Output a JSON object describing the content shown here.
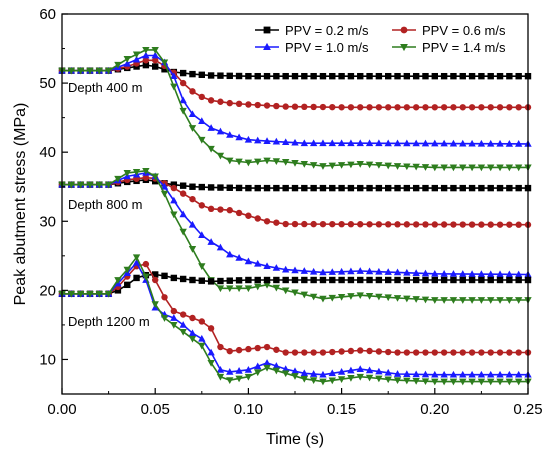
{
  "chart_data": {
    "type": "line",
    "xlabel": "Time (s)",
    "ylabel": "Peak abutment stress (MPa)",
    "xlim": [
      0,
      0.25
    ],
    "ylim": [
      5,
      60
    ],
    "xticks": [
      "0.00",
      "0.05",
      "0.10",
      "0.15",
      "0.20",
      "0.25"
    ],
    "yticks": [
      "10",
      "20",
      "30",
      "40",
      "50",
      "60"
    ],
    "grid": false,
    "legend": {
      "placement": "top-right",
      "columns": 2
    },
    "series_styles": [
      {
        "name": "PPV = 0.2 m/s",
        "color": "#000000",
        "marker": "square"
      },
      {
        "name": "PPV = 0.6 m/s",
        "color": "#b22222",
        "marker": "circle"
      },
      {
        "name": "PPV = 1.0 m/s",
        "color": "#1a1aff",
        "marker": "triangle-up"
      },
      {
        "name": "PPV = 1.4 m/s",
        "color": "#2e7d1e",
        "marker": "triangle-down"
      }
    ],
    "annotations": [
      "Depth 400 m",
      "Depth 800 m",
      "Depth 1200 m"
    ],
    "groups": [
      {
        "depth": "Depth 400 m",
        "series": [
          {
            "name": "PPV = 0.2 m/s",
            "x": [
              0,
              0.025,
              0.035,
              0.045,
              0.05,
              0.055,
              0.06,
              0.07,
              0.08,
              0.1,
              0.25
            ],
            "y": [
              51.8,
              51.8,
              52.2,
              52.6,
              52.4,
              52.0,
              51.6,
              51.3,
              51.1,
              51.0,
              51.0
            ]
          },
          {
            "name": "PPV = 0.6 m/s",
            "x": [
              0,
              0.025,
              0.035,
              0.045,
              0.05,
              0.055,
              0.06,
              0.065,
              0.07,
              0.075,
              0.08,
              0.09,
              0.1,
              0.12,
              0.15,
              0.25
            ],
            "y": [
              51.8,
              51.8,
              52.4,
              53.3,
              53.3,
              52.5,
              51.5,
              50.0,
              48.8,
              48.0,
              47.5,
              47.1,
              46.9,
              46.6,
              46.5,
              46.5
            ]
          },
          {
            "name": "PPV = 1.0 m/s",
            "x": [
              0,
              0.025,
              0.035,
              0.045,
              0.05,
              0.055,
              0.06,
              0.065,
              0.07,
              0.075,
              0.08,
              0.09,
              0.1,
              0.11,
              0.13,
              0.16,
              0.25
            ],
            "y": [
              51.8,
              51.8,
              52.8,
              54.0,
              54.0,
              53.0,
              51.0,
              47.5,
              45.5,
              44.5,
              43.5,
              42.5,
              41.8,
              41.6,
              41.3,
              41.3,
              41.2
            ]
          },
          {
            "name": "PPV = 1.4 m/s",
            "x": [
              0,
              0.025,
              0.035,
              0.045,
              0.05,
              0.055,
              0.06,
              0.065,
              0.07,
              0.075,
              0.08,
              0.085,
              0.09,
              0.1,
              0.11,
              0.12,
              0.14,
              0.16,
              0.18,
              0.2,
              0.25
            ],
            "y": [
              51.8,
              51.8,
              53.5,
              54.8,
              54.8,
              53.0,
              49.5,
              46.0,
              43.5,
              41.8,
              40.5,
              39.5,
              38.8,
              38.5,
              38.8,
              38.6,
              38.0,
              38.3,
              38.0,
              37.8,
              37.8
            ]
          }
        ]
      },
      {
        "depth": "Depth 800 m",
        "series": [
          {
            "name": "PPV = 0.2 m/s",
            "x": [
              0,
              0.025,
              0.035,
              0.045,
              0.05,
              0.055,
              0.06,
              0.07,
              0.08,
              0.1,
              0.25
            ],
            "y": [
              35.3,
              35.3,
              35.7,
              36.0,
              35.8,
              35.5,
              35.3,
              35.0,
              34.9,
              34.8,
              34.8
            ]
          },
          {
            "name": "PPV = 0.6 m/s",
            "x": [
              0,
              0.025,
              0.035,
              0.045,
              0.05,
              0.06,
              0.07,
              0.075,
              0.08,
              0.09,
              0.1,
              0.11,
              0.12,
              0.25
            ],
            "y": [
              35.3,
              35.3,
              36.0,
              36.3,
              36.2,
              34.8,
              33.2,
              32.3,
              31.8,
              31.6,
              30.8,
              30.0,
              29.6,
              29.5
            ]
          },
          {
            "name": "PPV = 1.0 m/s",
            "x": [
              0,
              0.025,
              0.035,
              0.045,
              0.05,
              0.055,
              0.06,
              0.065,
              0.07,
              0.075,
              0.08,
              0.085,
              0.09,
              0.1,
              0.11,
              0.12,
              0.14,
              0.16,
              0.2,
              0.25
            ],
            "y": [
              35.3,
              35.3,
              36.5,
              37.0,
              36.5,
              35.0,
              33.0,
              31.0,
              29.5,
              28.0,
              27.0,
              26.2,
              25.2,
              24.2,
              23.5,
              23.0,
              22.6,
              22.8,
              22.4,
              22.3
            ]
          },
          {
            "name": "PPV = 1.4 m/s",
            "x": [
              0,
              0.025,
              0.035,
              0.045,
              0.05,
              0.055,
              0.06,
              0.065,
              0.07,
              0.075,
              0.08,
              0.085,
              0.09,
              0.1,
              0.11,
              0.12,
              0.14,
              0.16,
              0.18,
              0.2,
              0.25
            ],
            "y": [
              35.3,
              35.3,
              37.0,
              37.3,
              36.5,
              34.0,
              31.0,
              28.5,
              26.0,
              23.5,
              21.5,
              20.3,
              20.3,
              20.3,
              20.8,
              20.0,
              18.8,
              19.3,
              18.9,
              18.6,
              18.6
            ]
          }
        ]
      },
      {
        "depth": "Depth 1200 m",
        "series": [
          {
            "name": "PPV = 0.2 m/s",
            "x": [
              0,
              0.025,
              0.03,
              0.035,
              0.04,
              0.045,
              0.05,
              0.055,
              0.06,
              0.07,
              0.08,
              0.1,
              0.15,
              0.25
            ],
            "y": [
              19.5,
              19.5,
              20.0,
              20.8,
              21.8,
              22.2,
              22.3,
              22.1,
              21.8,
              21.5,
              21.3,
              21.5,
              21.5,
              21.5
            ]
          },
          {
            "name": "PPV = 0.6 m/s",
            "x": [
              0,
              0.025,
              0.03,
              0.035,
              0.04,
              0.045,
              0.05,
              0.055,
              0.06,
              0.065,
              0.07,
              0.075,
              0.08,
              0.085,
              0.09,
              0.1,
              0.11,
              0.12,
              0.14,
              0.16,
              0.18,
              0.2,
              0.25
            ],
            "y": [
              19.5,
              19.5,
              20.5,
              22.0,
              23.5,
              23.8,
              21.5,
              19.0,
              17.0,
              16.5,
              16.0,
              15.5,
              14.5,
              11.8,
              11.2,
              11.5,
              11.8,
              11.0,
              11.0,
              11.3,
              11.0,
              11.0,
              11.0
            ]
          },
          {
            "name": "PPV = 1.0 m/s",
            "x": [
              0,
              0.025,
              0.03,
              0.035,
              0.04,
              0.045,
              0.05,
              0.055,
              0.06,
              0.065,
              0.07,
              0.075,
              0.08,
              0.085,
              0.09,
              0.1,
              0.11,
              0.12,
              0.13,
              0.14,
              0.16,
              0.18,
              0.2,
              0.25
            ],
            "y": [
              19.5,
              19.5,
              21.0,
              22.5,
              24.0,
              21.5,
              17.5,
              16.5,
              16.0,
              15.0,
              13.8,
              13.0,
              11.0,
              8.5,
              8.2,
              8.5,
              9.5,
              8.6,
              8.0,
              7.8,
              8.6,
              7.9,
              7.8,
              7.8
            ]
          },
          {
            "name": "PPV = 1.4 m/s",
            "x": [
              0,
              0.025,
              0.03,
              0.035,
              0.04,
              0.045,
              0.05,
              0.055,
              0.06,
              0.065,
              0.07,
              0.075,
              0.08,
              0.085,
              0.09,
              0.1,
              0.11,
              0.12,
              0.13,
              0.14,
              0.16,
              0.18,
              0.2,
              0.25
            ],
            "y": [
              19.5,
              19.5,
              21.5,
              23.0,
              24.8,
              22.0,
              18.0,
              16.0,
              15.0,
              14.0,
              13.0,
              12.0,
              9.5,
              7.5,
              7.0,
              7.5,
              8.8,
              8.0,
              7.2,
              6.8,
              7.5,
              7.0,
              6.8,
              6.8
            ]
          }
        ]
      }
    ]
  }
}
